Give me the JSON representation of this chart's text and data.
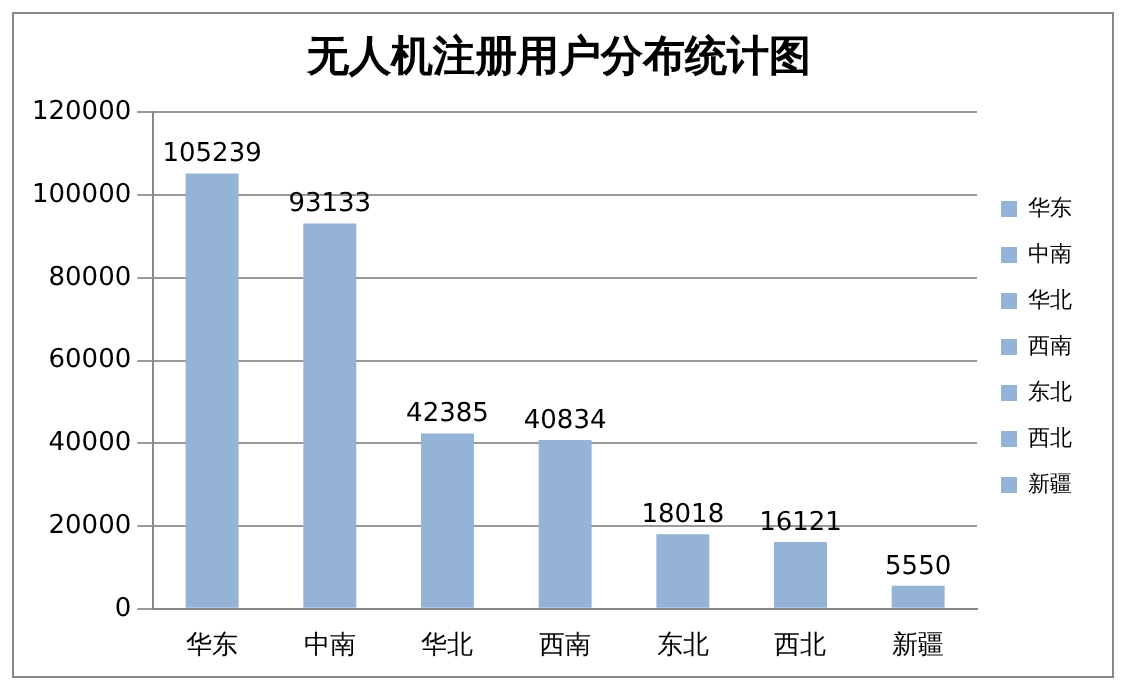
{
  "chart_data": {
    "type": "bar",
    "title": "无人机注册用户分布统计图",
    "categories": [
      "华东",
      "中南",
      "华北",
      "西南",
      "东北",
      "西北",
      "新疆"
    ],
    "series": [
      {
        "name": "华东",
        "color": "#95b3d7",
        "values": [
          105239,
          null,
          null,
          null,
          null,
          null,
          null
        ]
      },
      {
        "name": "中南",
        "color": "#95b3d7",
        "values": [
          null,
          93133,
          null,
          null,
          null,
          null,
          null
        ]
      },
      {
        "name": "华北",
        "color": "#95b3d7",
        "values": [
          null,
          null,
          42385,
          null,
          null,
          null,
          null
        ]
      },
      {
        "name": "西南",
        "color": "#95b3d7",
        "values": [
          null,
          null,
          null,
          40834,
          null,
          null,
          null
        ]
      },
      {
        "name": "东北",
        "color": "#95b3d7",
        "values": [
          null,
          null,
          null,
          null,
          18018,
          null,
          null
        ]
      },
      {
        "name": "西北",
        "color": "#95b3d7",
        "values": [
          null,
          null,
          null,
          null,
          null,
          16121,
          null
        ]
      },
      {
        "name": "新疆",
        "color": "#95b3d7",
        "values": [
          null,
          null,
          null,
          null,
          null,
          null,
          5550
        ]
      }
    ],
    "ylim": [
      0,
      120000
    ],
    "yticks": [
      0,
      20000,
      40000,
      60000,
      80000,
      100000,
      120000
    ],
    "grid": "y",
    "legend": "right",
    "data_labels": true
  }
}
